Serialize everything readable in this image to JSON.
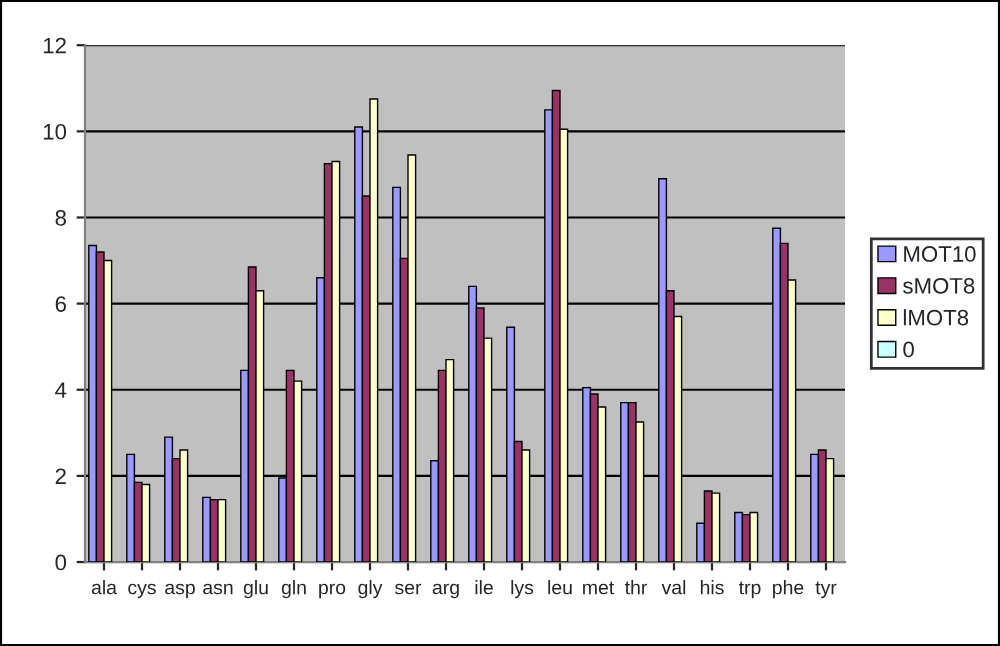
{
  "chart_data": {
    "type": "bar",
    "categories": [
      "ala",
      "cys",
      "asp",
      "asn",
      "glu",
      "gln",
      "pro",
      "gly",
      "ser",
      "arg",
      "ile",
      "lys",
      "leu",
      "met",
      "thr",
      "val",
      "his",
      "trp",
      "phe",
      "tyr"
    ],
    "series": [
      {
        "name": "MOT10",
        "color": "#9999ff",
        "values": [
          7.35,
          2.5,
          2.9,
          1.5,
          4.45,
          1.95,
          6.6,
          10.1,
          8.7,
          2.35,
          6.4,
          5.45,
          10.5,
          4.05,
          3.7,
          8.9,
          0.9,
          1.15,
          7.75,
          2.5
        ]
      },
      {
        "name": "sMOT8",
        "color": "#993366",
        "values": [
          7.2,
          1.85,
          2.4,
          1.45,
          6.85,
          4.45,
          9.25,
          8.5,
          7.05,
          4.45,
          5.9,
          2.8,
          10.95,
          3.9,
          3.7,
          6.3,
          1.65,
          1.1,
          7.4,
          2.6
        ]
      },
      {
        "name": "lMOT8",
        "color": "#ffffcc",
        "values": [
          7.0,
          1.8,
          2.6,
          1.45,
          6.3,
          4.2,
          9.3,
          10.75,
          9.45,
          4.7,
          5.2,
          2.6,
          10.05,
          3.6,
          3.25,
          5.7,
          1.6,
          1.15,
          6.55,
          2.4
        ]
      },
      {
        "name": "0",
        "color": "#ccffff",
        "values": [
          null,
          null,
          null,
          null,
          null,
          null,
          null,
          null,
          null,
          null,
          null,
          null,
          null,
          null,
          null,
          null,
          null,
          null,
          null,
          null
        ]
      }
    ],
    "ylim": [
      0,
      12
    ],
    "yticks": [
      0,
      2,
      4,
      6,
      8,
      10,
      12
    ],
    "grid": "y",
    "legend": "right"
  }
}
